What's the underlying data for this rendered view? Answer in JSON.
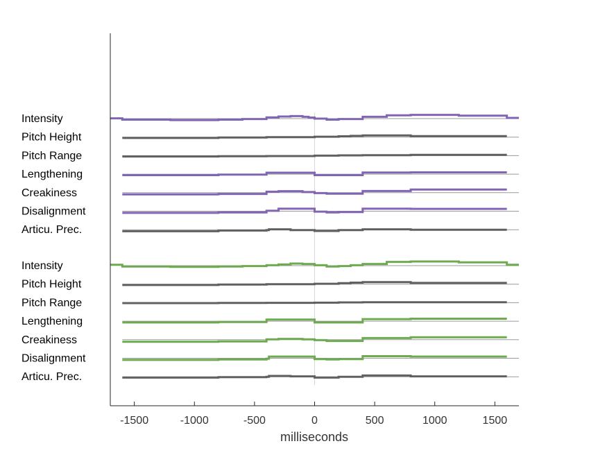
{
  "chart_data": {
    "type": "line",
    "xlabel": "milliseconds",
    "xlim": [
      -1700,
      1700
    ],
    "x_ticks": [
      "-1500",
      "-1000",
      "-500",
      "0",
      "500",
      "1000",
      "1500"
    ],
    "x_tick_values": [
      -1500,
      -1000,
      -500,
      0,
      500,
      1000,
      1500
    ],
    "zero_line": true,
    "colors": {
      "purple": "#8264b4",
      "green": "#6eaa50",
      "gray": "#606060",
      "baseline": "#9a9a9a",
      "zero_line": "#d8d8d8"
    },
    "groups": [
      {
        "series": [
          {
            "name": "Intensity",
            "color": "purple",
            "extent": [
              -1700,
              1700
            ],
            "steps": [
              [
                -1700,
                0.03
              ],
              [
                -1600,
                -0.12
              ],
              [
                -1200,
                -0.18
              ],
              [
                -800,
                -0.12
              ],
              [
                -600,
                -0.05
              ],
              [
                -400,
                0.15
              ],
              [
                -300,
                0.25
              ],
              [
                -200,
                0.3
              ],
              [
                -100,
                0.22
              ],
              [
                -50,
                0.12
              ],
              [
                0,
                0.0
              ],
              [
                100,
                -0.12
              ],
              [
                200,
                -0.05
              ],
              [
                400,
                0.22
              ],
              [
                600,
                0.4
              ],
              [
                800,
                0.45
              ],
              [
                1200,
                0.35
              ],
              [
                1600,
                0.08
              ]
            ]
          },
          {
            "name": "Pitch Height",
            "color": "gray",
            "extent": [
              -1600,
              1600
            ],
            "steps": [
              [
                -1600,
                -0.1
              ],
              [
                -800,
                -0.05
              ],
              [
                -400,
                0.0
              ],
              [
                0,
                0.05
              ],
              [
                200,
                0.1
              ],
              [
                300,
                0.15
              ],
              [
                400,
                0.2
              ],
              [
                800,
                0.12
              ]
            ]
          },
          {
            "name": "Pitch Range",
            "color": "gray",
            "extent": [
              -1600,
              1600
            ],
            "steps": [
              [
                -1600,
                -0.1
              ],
              [
                -800,
                -0.07
              ],
              [
                -400,
                -0.05
              ],
              [
                0,
                0.0
              ],
              [
                200,
                0.03
              ],
              [
                400,
                0.05
              ],
              [
                800,
                0.1
              ]
            ]
          },
          {
            "name": "Lengthening",
            "color": "purple",
            "extent": [
              -1600,
              1600
            ],
            "steps": [
              [
                -1600,
                -0.12
              ],
              [
                -800,
                -0.05
              ],
              [
                -400,
                0.18
              ],
              [
                0,
                -0.12
              ],
              [
                400,
                0.2
              ],
              [
                800,
                0.22
              ]
            ]
          },
          {
            "name": "Creakiness",
            "color": "purple",
            "extent": [
              -1600,
              1600
            ],
            "steps": [
              [
                -1600,
                -0.2
              ],
              [
                -800,
                -0.15
              ],
              [
                -400,
                0.12
              ],
              [
                -300,
                0.18
              ],
              [
                -100,
                0.08
              ],
              [
                0,
                -0.05
              ],
              [
                100,
                -0.12
              ],
              [
                200,
                -0.12
              ],
              [
                400,
                0.2
              ],
              [
                800,
                0.38
              ]
            ]
          },
          {
            "name": "Disalignment",
            "color": "purple",
            "extent": [
              -1600,
              1600
            ],
            "steps": [
              [
                -1600,
                -0.2
              ],
              [
                -800,
                -0.15
              ],
              [
                -400,
                0.05
              ],
              [
                -300,
                0.3
              ],
              [
                0,
                -0.05
              ],
              [
                100,
                -0.15
              ],
              [
                200,
                -0.1
              ],
              [
                400,
                0.3
              ],
              [
                800,
                0.28
              ]
            ]
          },
          {
            "name": "Articu. Prec.",
            "color": "gray",
            "extent": [
              -1600,
              1600
            ],
            "steps": [
              [
                -1600,
                -0.18
              ],
              [
                -800,
                -0.1
              ],
              [
                -400,
                -0.05
              ],
              [
                -380,
                0.05
              ],
              [
                -200,
                -0.05
              ],
              [
                0,
                -0.15
              ],
              [
                200,
                -0.05
              ],
              [
                400,
                0.05
              ],
              [
                800,
                0.0
              ]
            ]
          }
        ]
      },
      {
        "series": [
          {
            "name": "Intensity",
            "color": "green",
            "extent": [
              -1700,
              1700
            ],
            "steps": [
              [
                -1700,
                0.1
              ],
              [
                -1600,
                -0.1
              ],
              [
                -1200,
                -0.15
              ],
              [
                -800,
                -0.1
              ],
              [
                -600,
                -0.05
              ],
              [
                -400,
                0.05
              ],
              [
                -300,
                0.15
              ],
              [
                -200,
                0.25
              ],
              [
                -100,
                0.2
              ],
              [
                0,
                0.05
              ],
              [
                100,
                -0.1
              ],
              [
                200,
                -0.05
              ],
              [
                300,
                0.05
              ],
              [
                400,
                0.2
              ],
              [
                600,
                0.45
              ],
              [
                800,
                0.5
              ],
              [
                1200,
                0.4
              ],
              [
                1600,
                0.1
              ]
            ]
          },
          {
            "name": "Pitch Height",
            "color": "gray",
            "extent": [
              -1600,
              1600
            ],
            "steps": [
              [
                -1600,
                -0.1
              ],
              [
                -800,
                -0.05
              ],
              [
                -400,
                0.0
              ],
              [
                0,
                0.05
              ],
              [
                200,
                0.12
              ],
              [
                300,
                0.18
              ],
              [
                400,
                0.25
              ],
              [
                800,
                0.15
              ]
            ]
          },
          {
            "name": "Pitch Range",
            "color": "gray",
            "extent": [
              -1600,
              1600
            ],
            "steps": [
              [
                -1600,
                -0.05
              ],
              [
                -800,
                -0.03
              ],
              [
                -400,
                -0.02
              ],
              [
                0,
                0.0
              ],
              [
                200,
                0.03
              ],
              [
                400,
                0.05
              ],
              [
                800,
                0.05
              ]
            ]
          },
          {
            "name": "Lengthening",
            "color": "green",
            "extent": [
              -1600,
              1600
            ],
            "steps": [
              [
                -1600,
                -0.15
              ],
              [
                -800,
                -0.1
              ],
              [
                -400,
                0.2
              ],
              [
                0,
                -0.15
              ],
              [
                400,
                0.25
              ],
              [
                800,
                0.3
              ]
            ]
          },
          {
            "name": "Creakiness",
            "color": "green",
            "extent": [
              -1600,
              1600
            ],
            "steps": [
              [
                -1600,
                -0.25
              ],
              [
                -800,
                -0.2
              ],
              [
                -400,
                0.05
              ],
              [
                -300,
                0.1
              ],
              [
                -100,
                0.05
              ],
              [
                0,
                -0.05
              ],
              [
                100,
                -0.15
              ],
              [
                200,
                -0.15
              ],
              [
                400,
                0.2
              ],
              [
                800,
                0.3
              ]
            ]
          },
          {
            "name": "Disalignment",
            "color": "green",
            "extent": [
              -1600,
              1600
            ],
            "steps": [
              [
                -1600,
                -0.2
              ],
              [
                -800,
                -0.15
              ],
              [
                -400,
                -0.05
              ],
              [
                -380,
                0.2
              ],
              [
                0,
                -0.1
              ],
              [
                100,
                -0.15
              ],
              [
                200,
                -0.1
              ],
              [
                400,
                0.25
              ],
              [
                800,
                0.2
              ]
            ]
          },
          {
            "name": "Articu. Prec.",
            "color": "gray",
            "extent": [
              -1600,
              1600
            ],
            "steps": [
              [
                -1600,
                -0.1
              ],
              [
                -800,
                -0.05
              ],
              [
                -400,
                0.0
              ],
              [
                -380,
                0.1
              ],
              [
                -200,
                0.05
              ],
              [
                0,
                -0.1
              ],
              [
                200,
                0.0
              ],
              [
                400,
                0.15
              ],
              [
                800,
                0.05
              ]
            ]
          }
        ]
      }
    ]
  }
}
